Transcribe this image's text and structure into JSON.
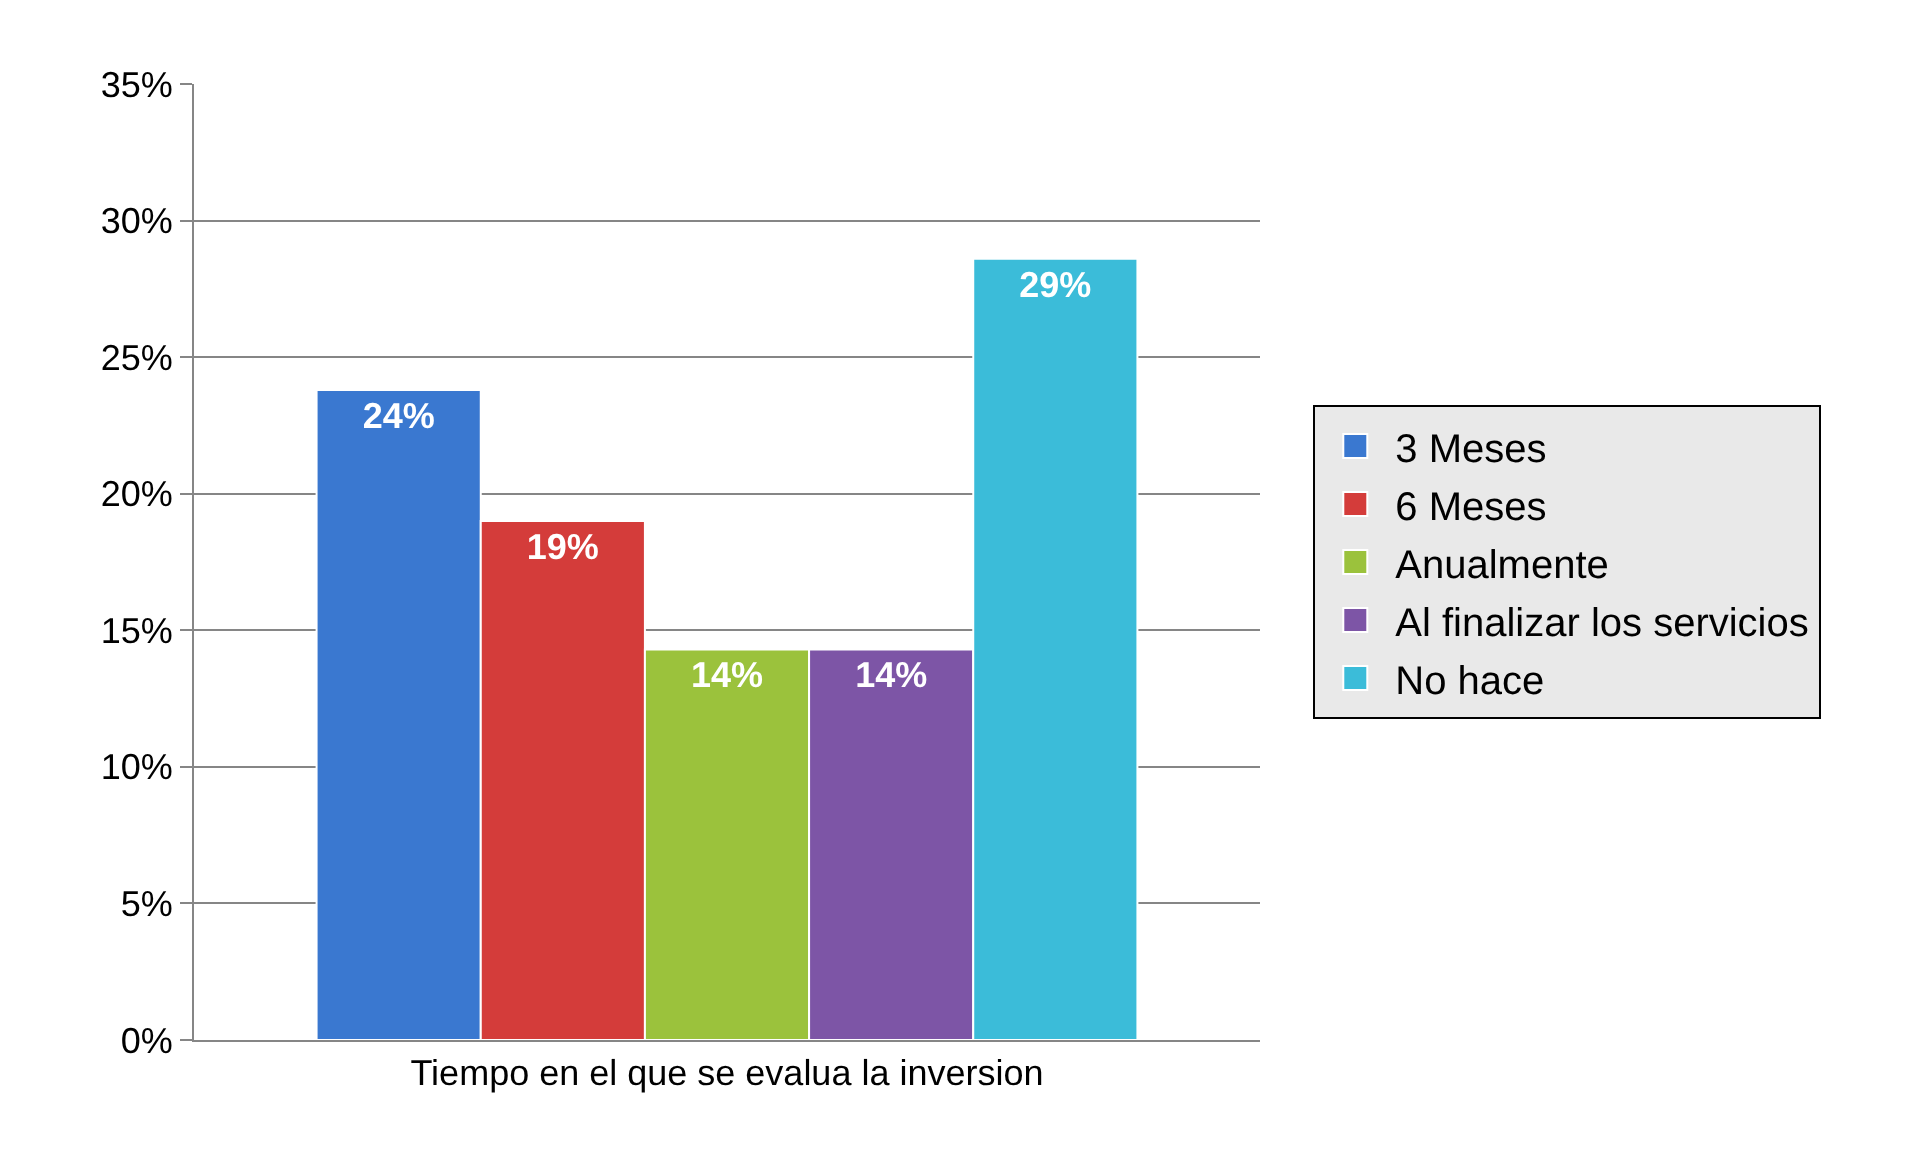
{
  "chart_data": {
    "type": "bar",
    "categories": [
      "Tiempo en el que se evalua la inversion"
    ],
    "series": [
      {
        "name": "3 Meses",
        "color": "#3a78d0",
        "values": [
          23.8
        ],
        "value_labels": [
          "24%"
        ]
      },
      {
        "name": "6 Meses",
        "color": "#d43c3a",
        "values": [
          19.0
        ],
        "value_labels": [
          "19%"
        ]
      },
      {
        "name": "Anualmente",
        "color": "#9bc23c",
        "values": [
          14.3
        ],
        "value_labels": [
          "14%"
        ]
      },
      {
        "name": "Al finalizar los servicios",
        "color": "#7d55a6",
        "values": [
          14.3
        ],
        "value_labels": [
          "14%"
        ]
      },
      {
        "name": "No hace",
        "color": "#3bbcd9",
        "values": [
          28.6
        ],
        "value_labels": [
          "29%"
        ]
      }
    ],
    "ylim": [
      0,
      35
    ],
    "yticks": [
      {
        "value": 0,
        "label": "0%"
      },
      {
        "value": 5,
        "label": "5%"
      },
      {
        "value": 10,
        "label": "10%"
      },
      {
        "value": 15,
        "label": "15%"
      },
      {
        "value": 20,
        "label": "20%"
      },
      {
        "value": 25,
        "label": "25%"
      },
      {
        "value": 30,
        "label": "30%"
      },
      {
        "value": 35,
        "label": "35%"
      }
    ],
    "grid": "y",
    "legend": "right"
  }
}
